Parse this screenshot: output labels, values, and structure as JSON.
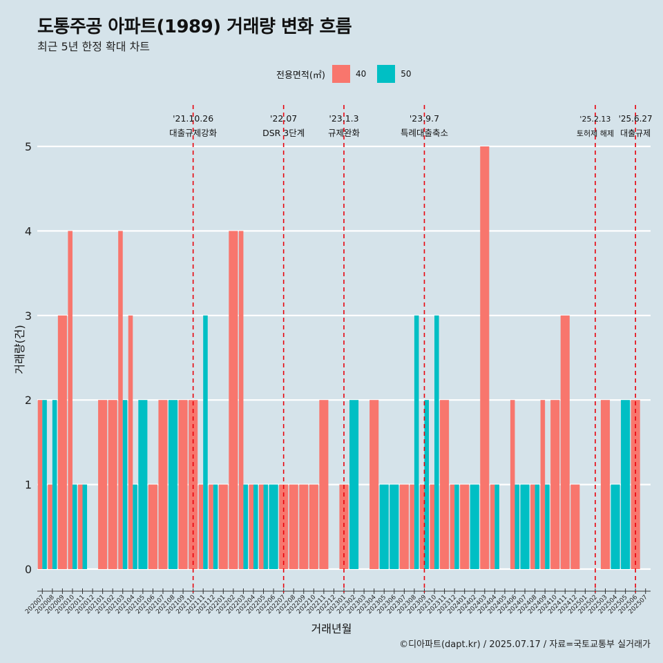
{
  "title": "도통주공 아파트(1989) 거래량 변화 흐름",
  "subtitle": "최근 5년 한정 확대 차트",
  "legend": {
    "title": "전용면적(㎡)",
    "items": [
      {
        "label": "40",
        "color": "#F8766D"
      },
      {
        "label": "50",
        "color": "#00BFC4"
      }
    ]
  },
  "caption": "©디아파트(dapt.kr) / 2025.07.17 / 자료=국토교통부 실거래가",
  "chart_data": {
    "type": "bar",
    "xlabel": "거래년월",
    "ylabel": "거래량(건)",
    "ylim": [
      0,
      5
    ],
    "yticks": [
      0,
      1,
      2,
      3,
      4,
      5
    ],
    "categories": [
      "202007",
      "202008",
      "202009",
      "202010",
      "202011",
      "202012",
      "202101",
      "202102",
      "202103",
      "202104",
      "202105",
      "202106",
      "202107",
      "202108",
      "202109",
      "202110",
      "202111",
      "202112",
      "202201",
      "202202",
      "202203",
      "202204",
      "202205",
      "202206",
      "202207",
      "202208",
      "202209",
      "202210",
      "202211",
      "202212",
      "202301",
      "202302",
      "202303",
      "202304",
      "202305",
      "202306",
      "202307",
      "202308",
      "202309",
      "202310",
      "202311",
      "202312",
      "202401",
      "202402",
      "202403",
      "202404",
      "202405",
      "202406",
      "202407",
      "202408",
      "202409",
      "202410",
      "202411",
      "202412",
      "202501",
      "202502",
      "202503",
      "202504",
      "202505",
      "202506",
      "202507"
    ],
    "series": [
      {
        "name": "40",
        "color": "#F8766D",
        "values": [
          2,
          1,
          3,
          4,
          1,
          0,
          2,
          2,
          4,
          3,
          0,
          1,
          2,
          0,
          2,
          2,
          1,
          1,
          1,
          4,
          4,
          1,
          1,
          0,
          1,
          1,
          1,
          1,
          2,
          0,
          1,
          0,
          0,
          2,
          0,
          0,
          1,
          1,
          1,
          1,
          2,
          1,
          1,
          0,
          5,
          1,
          0,
          2,
          0,
          1,
          2,
          2,
          3,
          1,
          0,
          0,
          2,
          0,
          0,
          2,
          0
        ]
      },
      {
        "name": "50",
        "color": "#00BFC4",
        "values": [
          2,
          2,
          0,
          1,
          1,
          0,
          0,
          0,
          2,
          1,
          2,
          0,
          0,
          2,
          0,
          0,
          3,
          1,
          0,
          0,
          1,
          1,
          1,
          1,
          0,
          0,
          0,
          0,
          0,
          0,
          0,
          2,
          0,
          0,
          1,
          1,
          0,
          3,
          2,
          3,
          0,
          1,
          0,
          1,
          0,
          1,
          0,
          1,
          1,
          1,
          1,
          0,
          0,
          0,
          0,
          0,
          0,
          1,
          2,
          0,
          0
        ]
      }
    ],
    "events": [
      {
        "date": "'21.10.26",
        "label": "대출규제강화",
        "category": "202110"
      },
      {
        "date": "'22.07",
        "label": "DSR 3단계",
        "category": "202207"
      },
      {
        "date": "'23.1.3",
        "label": "규제완화",
        "category": "202301"
      },
      {
        "date": "'23.9.7",
        "label": "특례대출축소",
        "category": "202309"
      },
      {
        "date": "'25.2.13",
        "label": "토허제 해제",
        "category": "202502"
      },
      {
        "date": "'25.6.27",
        "label": "대출규제",
        "category": "202506"
      }
    ]
  }
}
